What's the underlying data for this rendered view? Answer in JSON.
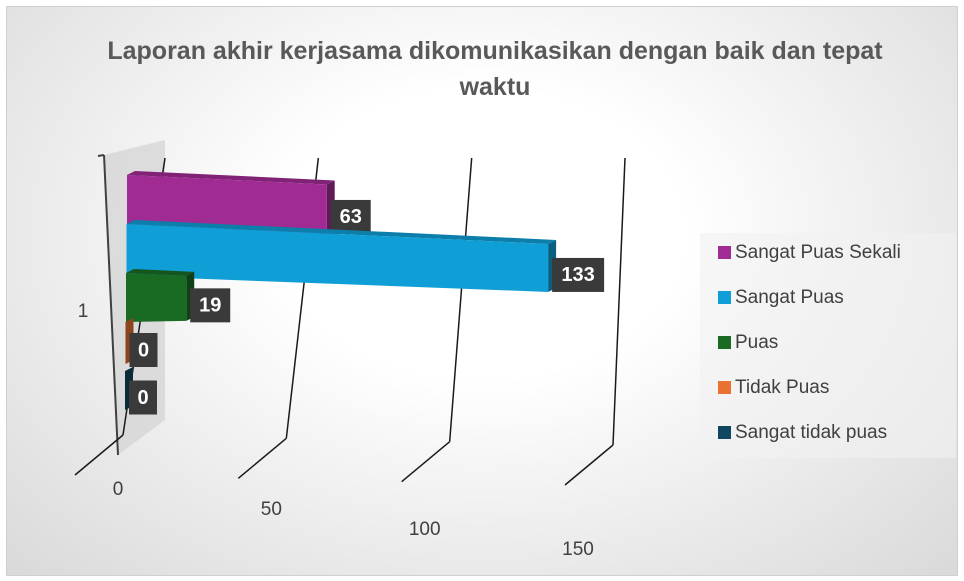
{
  "chart_data": {
    "type": "bar3d",
    "orientation": "horizontal",
    "title": "Laporan akhir kerjasama dikomunikasikan dengan baik dan tepat waktu",
    "categories": [
      "1"
    ],
    "series": [
      {
        "name": "Sangat Puas Sekali",
        "color": "#a02b93",
        "values": [
          63
        ]
      },
      {
        "name": "Sangat Puas",
        "color": "#0f9ed5",
        "values": [
          133
        ]
      },
      {
        "name": "Puas",
        "color": "#196b24",
        "values": [
          19
        ]
      },
      {
        "name": "Tidak Puas",
        "color": "#e97132",
        "values": [
          0
        ]
      },
      {
        "name": "Sangat tidak puas",
        "color": "#0f4761",
        "values": [
          0
        ]
      }
    ],
    "xlim": [
      0,
      150
    ],
    "xticks": [
      0,
      50,
      100,
      150
    ],
    "grid": true,
    "legend": "right",
    "data_labels": true
  }
}
